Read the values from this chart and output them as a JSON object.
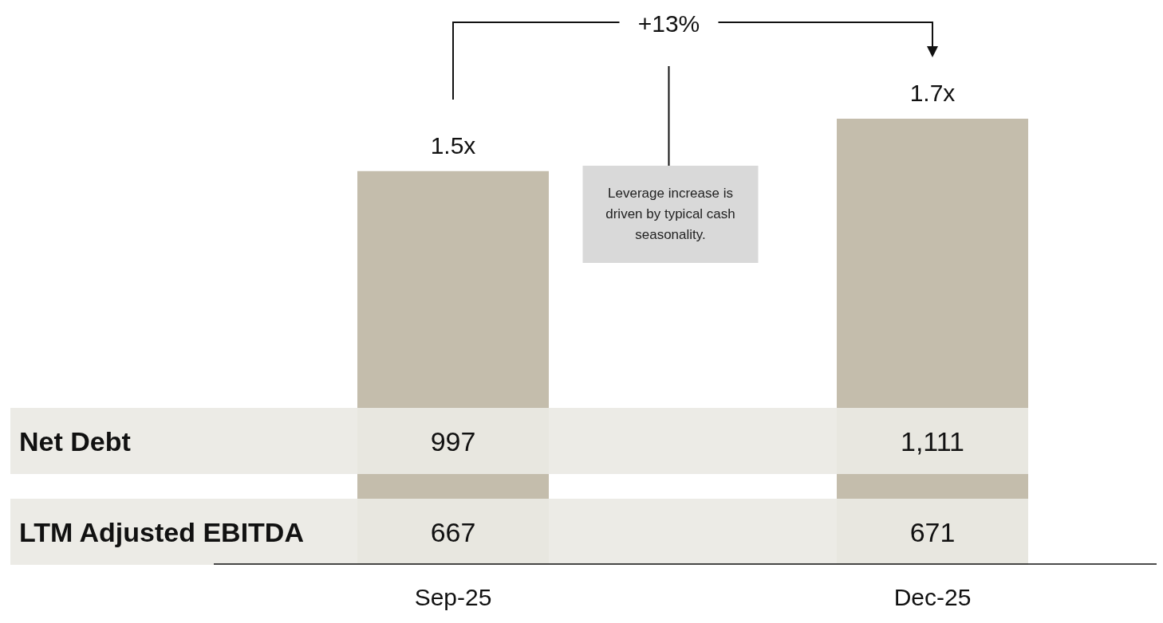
{
  "chart_data": {
    "type": "bar",
    "categories": [
      "Sep-25",
      "Dec-25"
    ],
    "values": [
      1.5,
      1.7
    ],
    "color": "#c4bdac",
    "value_labels": [
      "1.5x",
      "1.7x"
    ],
    "annotations": [
      "+13%",
      "Leverage increase is driven by typical cash seasonality.",
      "Net Debt",
      "997",
      "1,111",
      "LTM Adjusted EBITDA",
      "667",
      "671"
    ]
  }
}
